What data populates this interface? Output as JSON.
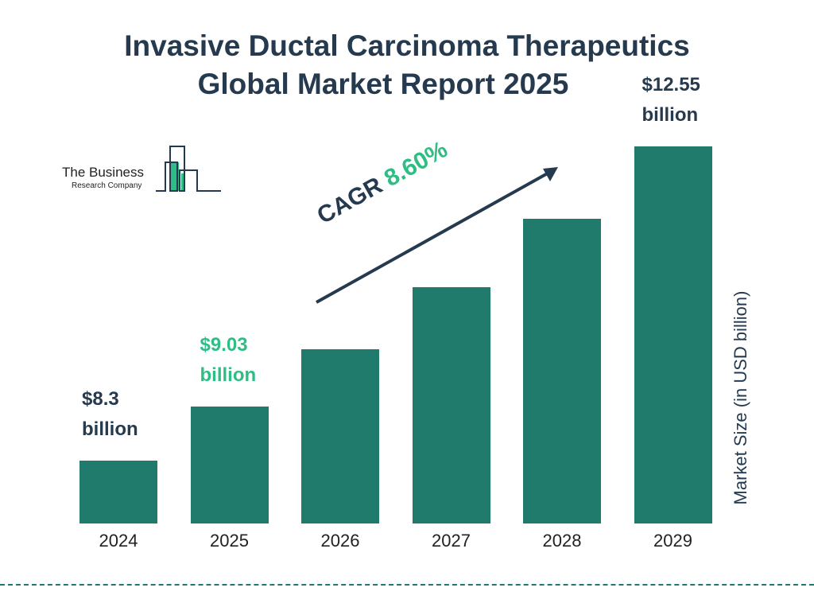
{
  "chart_data": {
    "type": "bar",
    "title": "Invasive Ductal Carcinoma Therapeutics Global Market Report 2025",
    "title_lines": [
      "Invasive Ductal Carcinoma Therapeutics",
      "Global Market Report 2025"
    ],
    "categories": [
      "2024",
      "2025",
      "2026",
      "2027",
      "2028",
      "2029"
    ],
    "values": [
      8.3,
      9.03,
      9.81,
      10.65,
      11.57,
      12.55
    ],
    "data_labels": [
      {
        "index": 0,
        "value": "$8.3",
        "unit": "billion",
        "color": "#253a4f"
      },
      {
        "index": 1,
        "value": "$9.03",
        "unit": "billion",
        "color": "#2ebd85"
      },
      {
        "index": 5,
        "value": "$12.55",
        "unit": "billion",
        "color": "#253a4f"
      }
    ],
    "ylabel": "Market Size (in USD billion)",
    "xlabel": "",
    "grid": false,
    "annotation": {
      "label": "CAGR",
      "value": "8.60%"
    },
    "colors": {
      "bar": "#217b6c",
      "title": "#253a4f",
      "accent": "#2ebd85"
    }
  },
  "logo": {
    "line1": "The Business",
    "line2": "Research Company"
  }
}
